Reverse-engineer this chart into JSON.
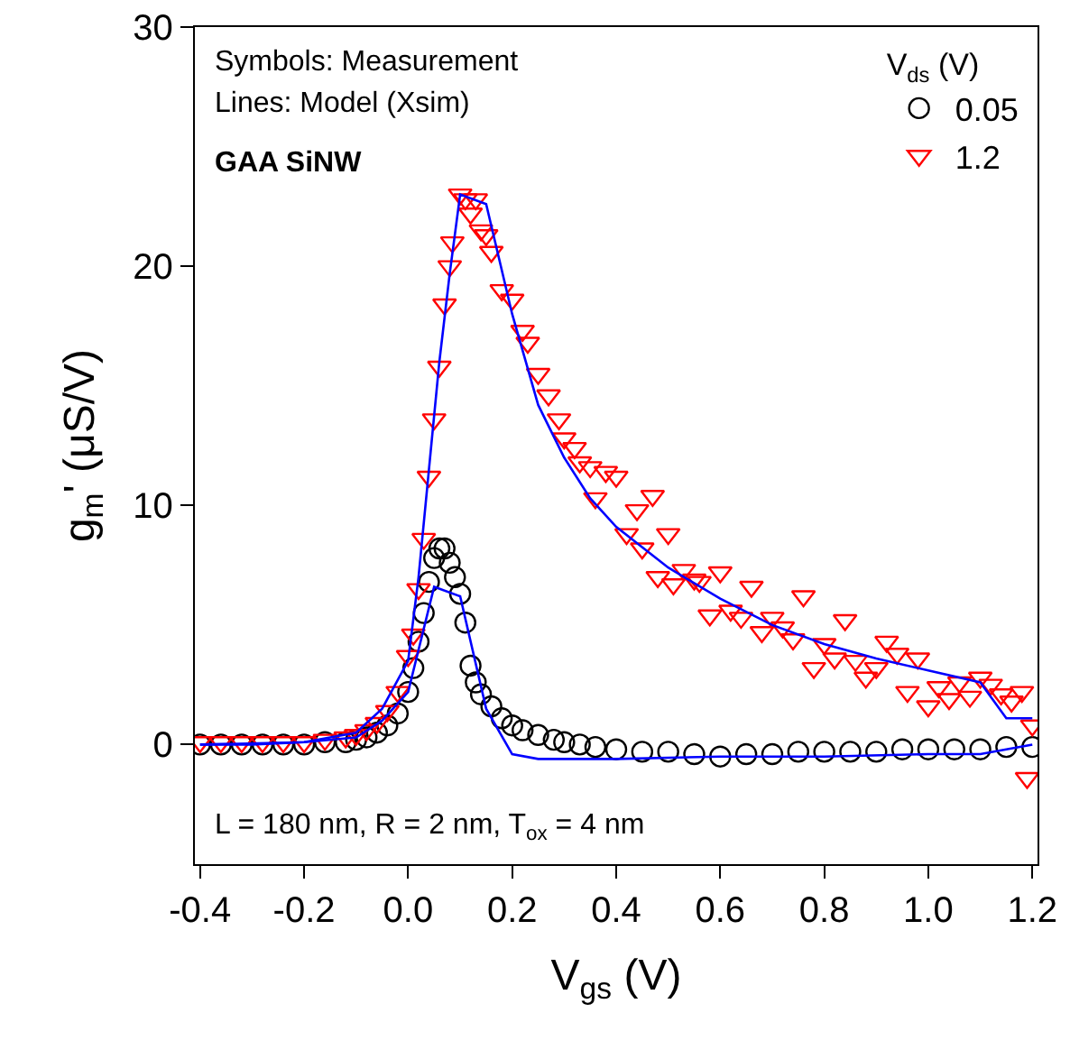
{
  "chart_data": {
    "type": "scatter",
    "xlabel": "V$_{gs}$ (V)",
    "ylabel": "g$_{m}$' (μS/V)",
    "legend_title": "V$_{ds}$ (V)",
    "legend": "top right",
    "grid": false,
    "xlim": [
      -0.41,
      1.21
    ],
    "xticks": [
      -0.4,
      -0.2,
      {
        "value": 0,
        "label": "0.0"
      },
      0.2,
      0.4,
      0.6,
      0.8,
      {
        "value": 1,
        "label": "1.0"
      },
      1.2
    ],
    "ylim": [
      -5,
      30
    ],
    "yticks": [
      0,
      10,
      20,
      30
    ],
    "annotations": [
      "Symbols: Measurement",
      "Lines: Model (Xsim)",
      "GAA SiNW",
      "L = 180 nm, R = 2 nm, T$_{ox}$ = 4 nm"
    ],
    "series": [
      {
        "name": "0.05",
        "color": "#000000",
        "marker": "circle",
        "x": [
          -0.4,
          -0.36,
          -0.32,
          -0.28,
          -0.24,
          -0.2,
          -0.16,
          -0.12,
          -0.1,
          -0.08,
          -0.06,
          -0.04,
          -0.02,
          0,
          0.01,
          0.02,
          0.03,
          0.04,
          0.05,
          0.06,
          0.07,
          0.08,
          0.09,
          0.1,
          0.11,
          0.12,
          0.13,
          0.14,
          0.16,
          0.18,
          0.2,
          0.22,
          0.25,
          0.28,
          0.3,
          0.33,
          0.36,
          0.4,
          0.45,
          0.5,
          0.55,
          0.6,
          0.65,
          0.7,
          0.75,
          0.8,
          0.85,
          0.9,
          0.95,
          1.0,
          1.05,
          1.1,
          1.15,
          1.2
        ],
        "values": [
          0,
          0,
          0,
          0,
          0,
          0,
          0.1,
          0.1,
          0.2,
          0.3,
          0.5,
          0.8,
          1.3,
          2.2,
          3.2,
          4.3,
          5.5,
          6.8,
          7.8,
          8.2,
          8.2,
          7.6,
          7.0,
          6.3,
          5.1,
          3.3,
          2.6,
          2.1,
          1.6,
          1.1,
          0.8,
          0.6,
          0.4,
          0.2,
          0.1,
          0,
          -0.1,
          -0.2,
          -0.3,
          -0.3,
          -0.4,
          -0.5,
          -0.4,
          -0.4,
          -0.3,
          -0.3,
          -0.3,
          -0.3,
          -0.2,
          -0.2,
          -0.2,
          -0.2,
          -0.1,
          -0.1
        ]
      },
      {
        "name": "1.2",
        "color": "#ff0000",
        "marker": "triangle",
        "x": [
          -0.4,
          -0.36,
          -0.32,
          -0.28,
          -0.24,
          -0.2,
          -0.16,
          -0.12,
          -0.1,
          -0.08,
          -0.06,
          -0.04,
          -0.02,
          0,
          0.01,
          0.02,
          0.03,
          0.04,
          0.05,
          0.06,
          0.07,
          0.08,
          0.085,
          0.1,
          0.11,
          0.12,
          0.13,
          0.14,
          0.15,
          0.16,
          0.18,
          0.2,
          0.22,
          0.23,
          0.25,
          0.27,
          0.29,
          0.3,
          0.32,
          0.33,
          0.35,
          0.36,
          0.38,
          0.4,
          0.42,
          0.44,
          0.45,
          0.47,
          0.48,
          0.5,
          0.51,
          0.53,
          0.55,
          0.56,
          0.58,
          0.6,
          0.62,
          0.64,
          0.66,
          0.68,
          0.7,
          0.72,
          0.74,
          0.76,
          0.78,
          0.8,
          0.82,
          0.84,
          0.86,
          0.88,
          0.9,
          0.92,
          0.94,
          0.96,
          0.98,
          1.0,
          1.02,
          1.04,
          1.06,
          1.08,
          1.1,
          1.12,
          1.14,
          1.16,
          1.18,
          1.19,
          1.2
        ],
        "values": [
          0.1,
          0.1,
          0.1,
          0.1,
          0.1,
          0.1,
          0.2,
          0.3,
          0.4,
          0.6,
          0.9,
          1.4,
          2.2,
          3.7,
          4.6,
          6.5,
          8.6,
          11.2,
          13.6,
          15.8,
          18.4,
          20,
          21,
          23,
          22.8,
          22.2,
          22.8,
          21.5,
          21.3,
          20.6,
          19,
          18.6,
          17.3,
          16.8,
          15.5,
          14.6,
          13.6,
          12.8,
          12.4,
          11.8,
          11.6,
          10.3,
          11.4,
          11.2,
          8.8,
          9.8,
          8.2,
          10.4,
          7,
          8.8,
          6.7,
          7.3,
          6.9,
          6.8,
          5.4,
          7.2,
          5.6,
          5.3,
          6.6,
          4.7,
          5.3,
          4.9,
          4.4,
          6.2,
          3.2,
          4.2,
          3.6,
          5.2,
          3.5,
          2.8,
          3.2,
          4.3,
          3.8,
          2.2,
          3.6,
          1.6,
          2.4,
          1.9,
          2.6,
          2.0,
          2.8,
          2.5,
          2.1,
          1.8,
          2.2,
          -1.4,
          0.8
        ]
      },
      {
        "type": "line",
        "color": "#0000ff",
        "line_style": "solid",
        "x": [
          -0.4,
          -0.3,
          -0.2,
          -0.1,
          -0.05,
          0,
          0.05,
          0.1,
          0.15,
          0.2,
          0.25,
          0.4,
          0.6,
          0.8,
          1.0,
          1.1,
          1.15,
          1.2
        ],
        "values": [
          0,
          0,
          0.1,
          0.3,
          1,
          2.2,
          6.6,
          6.2,
          1.5,
          -0.4,
          -0.6,
          -0.6,
          -0.5,
          -0.5,
          -0.4,
          -0.4,
          -0.2,
          0
        ]
      },
      {
        "type": "line",
        "color": "#0000ff",
        "line_style": "solid",
        "x": [
          -0.4,
          -0.2,
          -0.1,
          -0.05,
          0,
          0.02,
          0.04,
          0.06,
          0.08,
          0.1,
          0.15,
          0.2,
          0.25,
          0.3,
          0.35,
          0.4,
          0.5,
          0.6,
          0.7,
          0.8,
          0.9,
          1.0,
          1.1,
          1.15,
          1.2
        ],
        "values": [
          0,
          0.1,
          0.5,
          1.5,
          3.5,
          7,
          11.5,
          16,
          19.7,
          23,
          22.6,
          18,
          14.2,
          12,
          10.3,
          9.1,
          7.4,
          6.1,
          5,
          4.2,
          3.6,
          3.1,
          2.6,
          1.1,
          1.1
        ]
      }
    ]
  }
}
